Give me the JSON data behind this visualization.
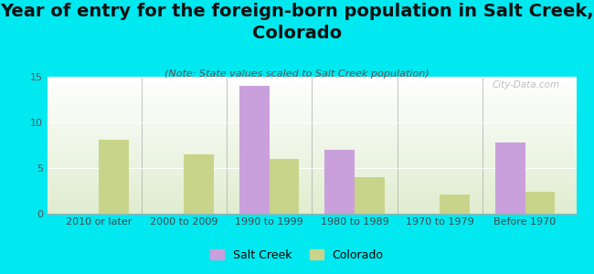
{
  "categories": [
    "2010 or later",
    "2000 to 2009",
    "1990 to 1999",
    "1980 to 1989",
    "1970 to 1979",
    "Before 1970"
  ],
  "salt_creek": [
    0,
    0,
    14,
    7,
    0,
    7.8
  ],
  "colorado": [
    8.1,
    6.5,
    6.0,
    4.0,
    2.1,
    2.4
  ],
  "salt_creek_color": "#c9a0dc",
  "colorado_color": "#c8d48a",
  "background_color": "#00e8f0",
  "grad_color_top": "#f0f8e8",
  "grad_color_bottom": "#d8edc8",
  "title": "Year of entry for the foreign-born population in Salt Creek,\nColorado",
  "subtitle": "(Note: State values scaled to Salt Creek population)",
  "ylim": [
    0,
    15
  ],
  "yticks": [
    0,
    5,
    10,
    15
  ],
  "bar_width": 0.35,
  "title_fontsize": 14,
  "subtitle_fontsize": 8,
  "tick_fontsize": 8,
  "legend_fontsize": 9,
  "watermark": "City-Data.com"
}
